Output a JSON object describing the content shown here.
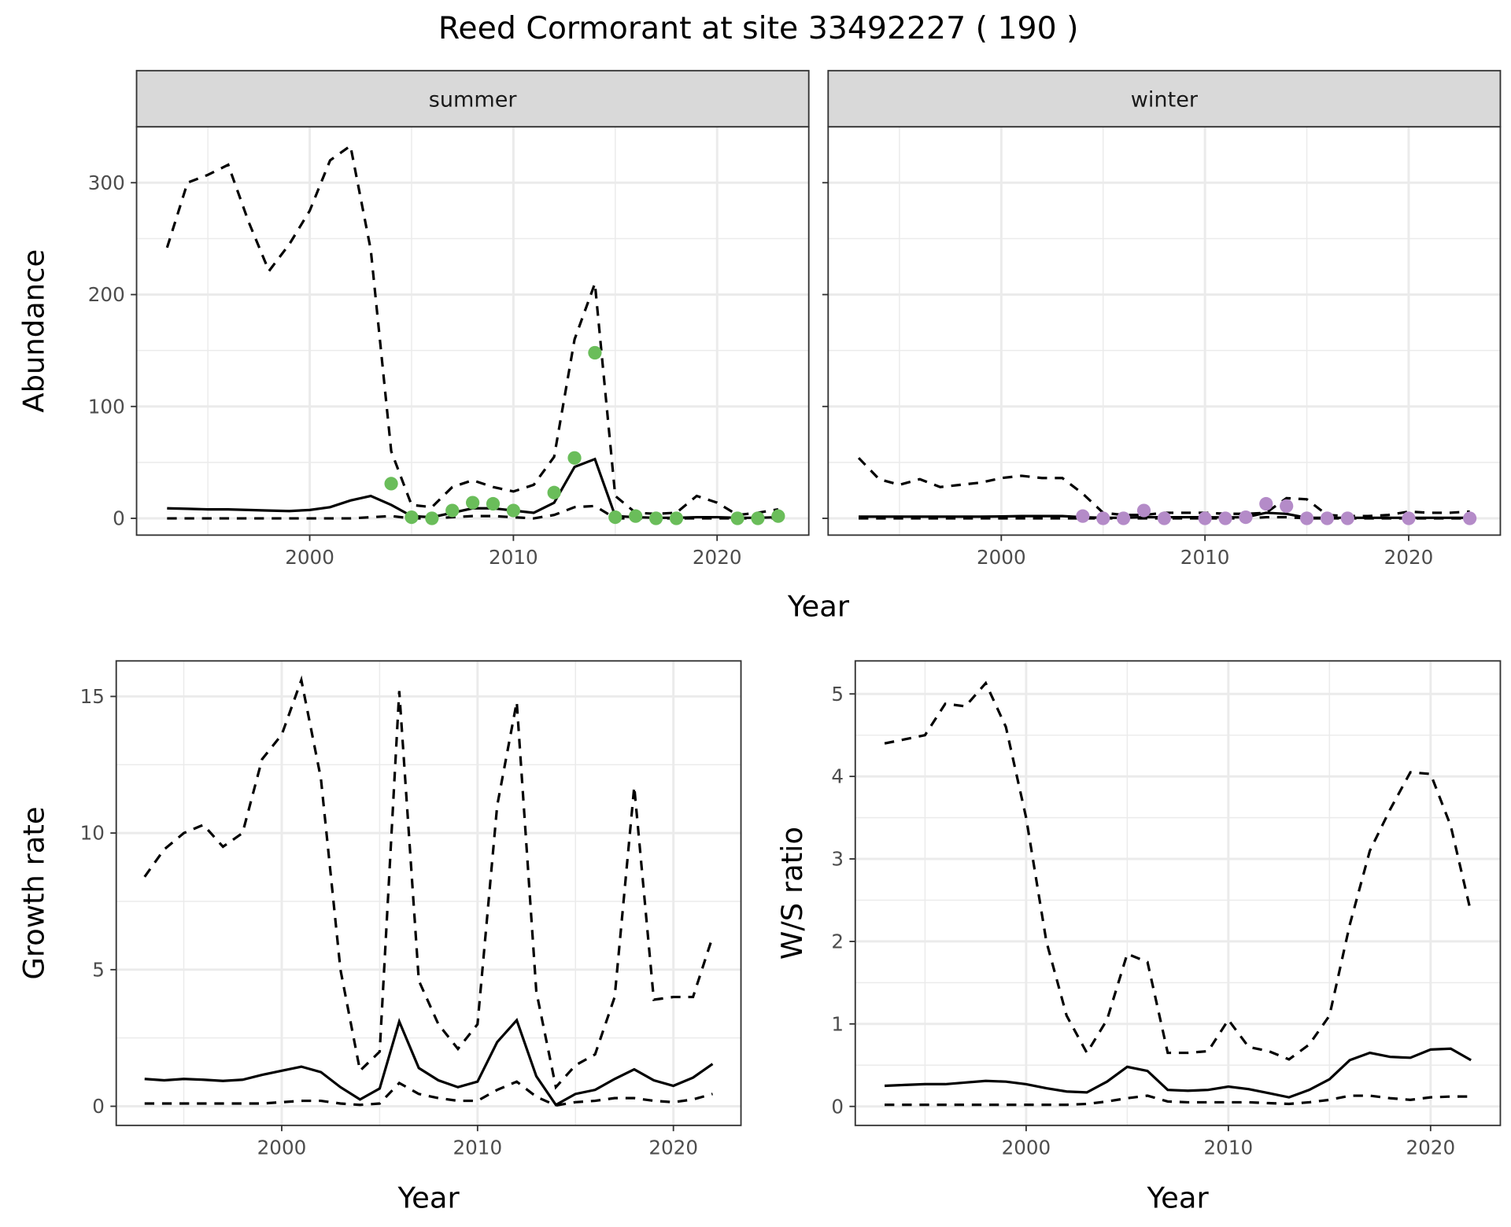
{
  "title": "Reed Cormorant at site 33492227 ( 190 )",
  "colors": {
    "summer_points": "#6ABD5A",
    "winter_points": "#B48BC8",
    "lines": "#000000",
    "strip_bg": "#D9D9D9",
    "grid": "#EBEBEB"
  },
  "chart_data": [
    {
      "type": "line",
      "facet": "summer",
      "xlabel": "Year",
      "ylabel": "Abundance",
      "xlim": [
        1993,
        2023
      ],
      "ylim": [
        -15,
        350
      ],
      "x_ticks": [
        2000,
        2010,
        2020
      ],
      "y_ticks": [
        0,
        100,
        200,
        300
      ],
      "grid": true,
      "x": [
        1993,
        1994,
        1995,
        1996,
        1997,
        1998,
        1999,
        2000,
        2001,
        2002,
        2003,
        2004,
        2005,
        2006,
        2007,
        2008,
        2009,
        2010,
        2011,
        2012,
        2013,
        2014,
        2015,
        2016,
        2017,
        2018,
        2019,
        2020,
        2021,
        2022,
        2023
      ],
      "mean": [
        9,
        8.5,
        8,
        8,
        7.5,
        7,
        6.5,
        7.5,
        10,
        16,
        20,
        12,
        2,
        1,
        5,
        9,
        9,
        7,
        5,
        14,
        46,
        53,
        2,
        1,
        0.5,
        0.5,
        1,
        1,
        0.5,
        0.5,
        1
      ],
      "upper": [
        242,
        300,
        307,
        316,
        265,
        221,
        245,
        275,
        320,
        333,
        240,
        60,
        12,
        10,
        28,
        34,
        28,
        24,
        30,
        55,
        160,
        210,
        20,
        5,
        4,
        5,
        20,
        14,
        3,
        5,
        8
      ],
      "lower": [
        0,
        0,
        0,
        0,
        0,
        0,
        0,
        0,
        0,
        0,
        1,
        2,
        0,
        0,
        1,
        2,
        2,
        1,
        0,
        3,
        10,
        11,
        0,
        0,
        0,
        0,
        0,
        0,
        0,
        0,
        0
      ],
      "points": {
        "x": [
          2004,
          2005,
          2006,
          2007,
          2008,
          2009,
          2010,
          2012,
          2013,
          2014,
          2015,
          2016,
          2017,
          2018,
          2021,
          2022,
          2023
        ],
        "y": [
          31,
          1,
          0,
          7,
          14,
          13,
          7,
          23,
          54,
          148,
          1,
          2,
          0,
          0,
          0,
          0,
          2
        ]
      }
    },
    {
      "type": "line",
      "facet": "winter",
      "xlabel": "Year",
      "ylabel": "Abundance",
      "xlim": [
        1993,
        2023
      ],
      "ylim": [
        -15,
        350
      ],
      "x_ticks": [
        2000,
        2010,
        2020
      ],
      "y_ticks": [
        0,
        100,
        200,
        300
      ],
      "grid": true,
      "x": [
        1993,
        1994,
        1995,
        1996,
        1997,
        1998,
        1999,
        2000,
        2001,
        2002,
        2003,
        2004,
        2005,
        2006,
        2007,
        2008,
        2009,
        2010,
        2011,
        2012,
        2013,
        2014,
        2015,
        2016,
        2017,
        2018,
        2019,
        2020,
        2021,
        2022,
        2023
      ],
      "mean": [
        1.5,
        1.5,
        1.5,
        1.5,
        1.5,
        1.5,
        1.5,
        1.7,
        2,
        2,
        2,
        1,
        0.5,
        0.5,
        1,
        1,
        1,
        1,
        0.8,
        1,
        5,
        4,
        0.5,
        0.5,
        0.5,
        0.5,
        0.5,
        0.5,
        0.5,
        0.5,
        0.5
      ],
      "upper": [
        54,
        35,
        30,
        35,
        28,
        30,
        32,
        36,
        38,
        36,
        36,
        22,
        5,
        3,
        3,
        5,
        5,
        5,
        4,
        4,
        5,
        18,
        17,
        3,
        2,
        2,
        3,
        6,
        5,
        5,
        6
      ],
      "lower": [
        0,
        0,
        0,
        0,
        0,
        0,
        0,
        0,
        0,
        0,
        0,
        0,
        0,
        0,
        0,
        0,
        0,
        0,
        0,
        0,
        1,
        1,
        0,
        0,
        0,
        0,
        0,
        0,
        0,
        0,
        0
      ],
      "points": {
        "x": [
          2004,
          2005,
          2006,
          2007,
          2008,
          2010,
          2011,
          2012,
          2013,
          2014,
          2015,
          2016,
          2017,
          2020,
          2023
        ],
        "y": [
          2,
          0,
          0,
          7,
          0,
          0,
          0,
          1,
          13,
          11,
          0,
          0,
          0,
          0,
          0
        ]
      }
    },
    {
      "type": "line",
      "xlabel": "Year",
      "ylabel": "Growth rate",
      "xlim": [
        1993,
        2022
      ],
      "ylim": [
        -0.7,
        16.3
      ],
      "x_ticks": [
        2000,
        2010,
        2020
      ],
      "y_ticks": [
        0,
        5,
        10,
        15
      ],
      "grid": true,
      "x": [
        1993,
        1994,
        1995,
        1996,
        1997,
        1998,
        1999,
        2000,
        2001,
        2002,
        2003,
        2004,
        2005,
        2006,
        2007,
        2008,
        2009,
        2010,
        2011,
        2012,
        2013,
        2014,
        2015,
        2016,
        2017,
        2018,
        2019,
        2020,
        2021,
        2022
      ],
      "mean": [
        1.0,
        0.95,
        1.0,
        0.97,
        0.93,
        0.97,
        1.15,
        1.3,
        1.45,
        1.25,
        0.7,
        0.25,
        0.65,
        3.1,
        1.4,
        0.95,
        0.7,
        0.9,
        2.35,
        3.15,
        1.1,
        0.05,
        0.45,
        0.6,
        1.0,
        1.35,
        0.95,
        0.75,
        1.05,
        1.55
      ],
      "upper": [
        8.4,
        9.4,
        10.0,
        10.3,
        9.5,
        10.0,
        12.7,
        13.6,
        15.6,
        12.0,
        5.0,
        1.3,
        2.0,
        15.2,
        4.6,
        3.0,
        2.1,
        3.0,
        11.0,
        14.8,
        4.2,
        0.7,
        1.5,
        1.9,
        4.0,
        11.7,
        3.9,
        4.0,
        4.0,
        6.2
      ],
      "lower": [
        0.1,
        0.1,
        0.1,
        0.1,
        0.1,
        0.1,
        0.1,
        0.15,
        0.2,
        0.2,
        0.1,
        0.05,
        0.1,
        0.85,
        0.45,
        0.3,
        0.2,
        0.2,
        0.6,
        0.9,
        0.35,
        0.03,
        0.15,
        0.2,
        0.3,
        0.3,
        0.2,
        0.15,
        0.25,
        0.45
      ]
    },
    {
      "type": "line",
      "xlabel": "Year",
      "ylabel": "W/S ratio",
      "xlim": [
        1993,
        2022
      ],
      "ylim": [
        -0.23,
        5.4
      ],
      "x_ticks": [
        2000,
        2010,
        2020
      ],
      "y_ticks": [
        0,
        1,
        2,
        3,
        4,
        5
      ],
      "grid": true,
      "x": [
        1993,
        1994,
        1995,
        1996,
        1997,
        1998,
        1999,
        2000,
        2001,
        2002,
        2003,
        2004,
        2005,
        2006,
        2007,
        2008,
        2009,
        2010,
        2011,
        2012,
        2013,
        2014,
        2015,
        2016,
        2017,
        2018,
        2019,
        2020,
        2021,
        2022
      ],
      "mean": [
        0.25,
        0.26,
        0.27,
        0.27,
        0.29,
        0.31,
        0.3,
        0.27,
        0.22,
        0.18,
        0.17,
        0.3,
        0.48,
        0.43,
        0.2,
        0.19,
        0.2,
        0.24,
        0.21,
        0.16,
        0.11,
        0.2,
        0.33,
        0.56,
        0.65,
        0.6,
        0.59,
        0.69,
        0.7,
        0.56
      ],
      "upper": [
        4.4,
        4.45,
        4.5,
        4.88,
        4.85,
        5.13,
        4.6,
        3.5,
        2.0,
        1.1,
        0.65,
        1.05,
        1.85,
        1.75,
        0.65,
        0.65,
        0.67,
        1.05,
        0.72,
        0.67,
        0.57,
        0.75,
        1.1,
        2.2,
        3.1,
        3.6,
        4.05,
        4.03,
        3.4,
        2.35
      ],
      "lower": [
        0.02,
        0.02,
        0.02,
        0.02,
        0.02,
        0.02,
        0.02,
        0.02,
        0.02,
        0.02,
        0.03,
        0.06,
        0.1,
        0.13,
        0.06,
        0.05,
        0.05,
        0.05,
        0.05,
        0.04,
        0.03,
        0.05,
        0.08,
        0.13,
        0.13,
        0.1,
        0.08,
        0.11,
        0.12,
        0.12
      ]
    }
  ]
}
